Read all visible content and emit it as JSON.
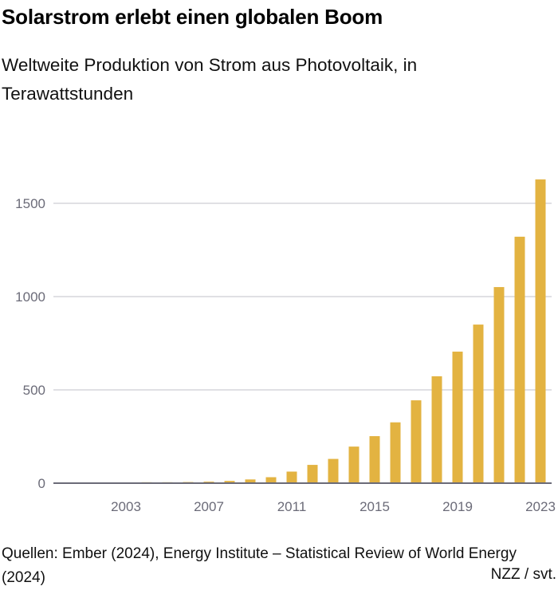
{
  "title": "Solarstrom erlebt einen globalen Boom",
  "subtitle": "Weltweite Produktion von Strom aus Photovoltaik, in Terawattstunden",
  "source": "Quellen: Ember (2024), Energy Institute – Statistical Review of World Energy (2024)",
  "credit": "NZZ / svt.",
  "colors": {
    "bar": "#e3b341",
    "grid": "#d5d5dc",
    "axis": "#6b6b78"
  },
  "chart_data": {
    "type": "bar",
    "title": "Solarstrom erlebt einen globalen Boom",
    "ylabel": "",
    "xlabel": "",
    "categories": [
      2000,
      2001,
      2002,
      2003,
      2004,
      2005,
      2006,
      2007,
      2008,
      2009,
      2010,
      2011,
      2012,
      2013,
      2014,
      2015,
      2016,
      2017,
      2018,
      2019,
      2020,
      2021,
      2022,
      2023
    ],
    "values": [
      1,
      2,
      3,
      4,
      5,
      5,
      6,
      8,
      12,
      20,
      32,
      62,
      98,
      130,
      196,
      252,
      326,
      444,
      573,
      705,
      850,
      1051,
      1321,
      1628
    ],
    "ylim": [
      0,
      1650
    ],
    "yticks": [
      0,
      500,
      1000,
      1500
    ],
    "xticks": [
      2003,
      2007,
      2011,
      2015,
      2019,
      2023
    ],
    "grid": "horizontal"
  }
}
